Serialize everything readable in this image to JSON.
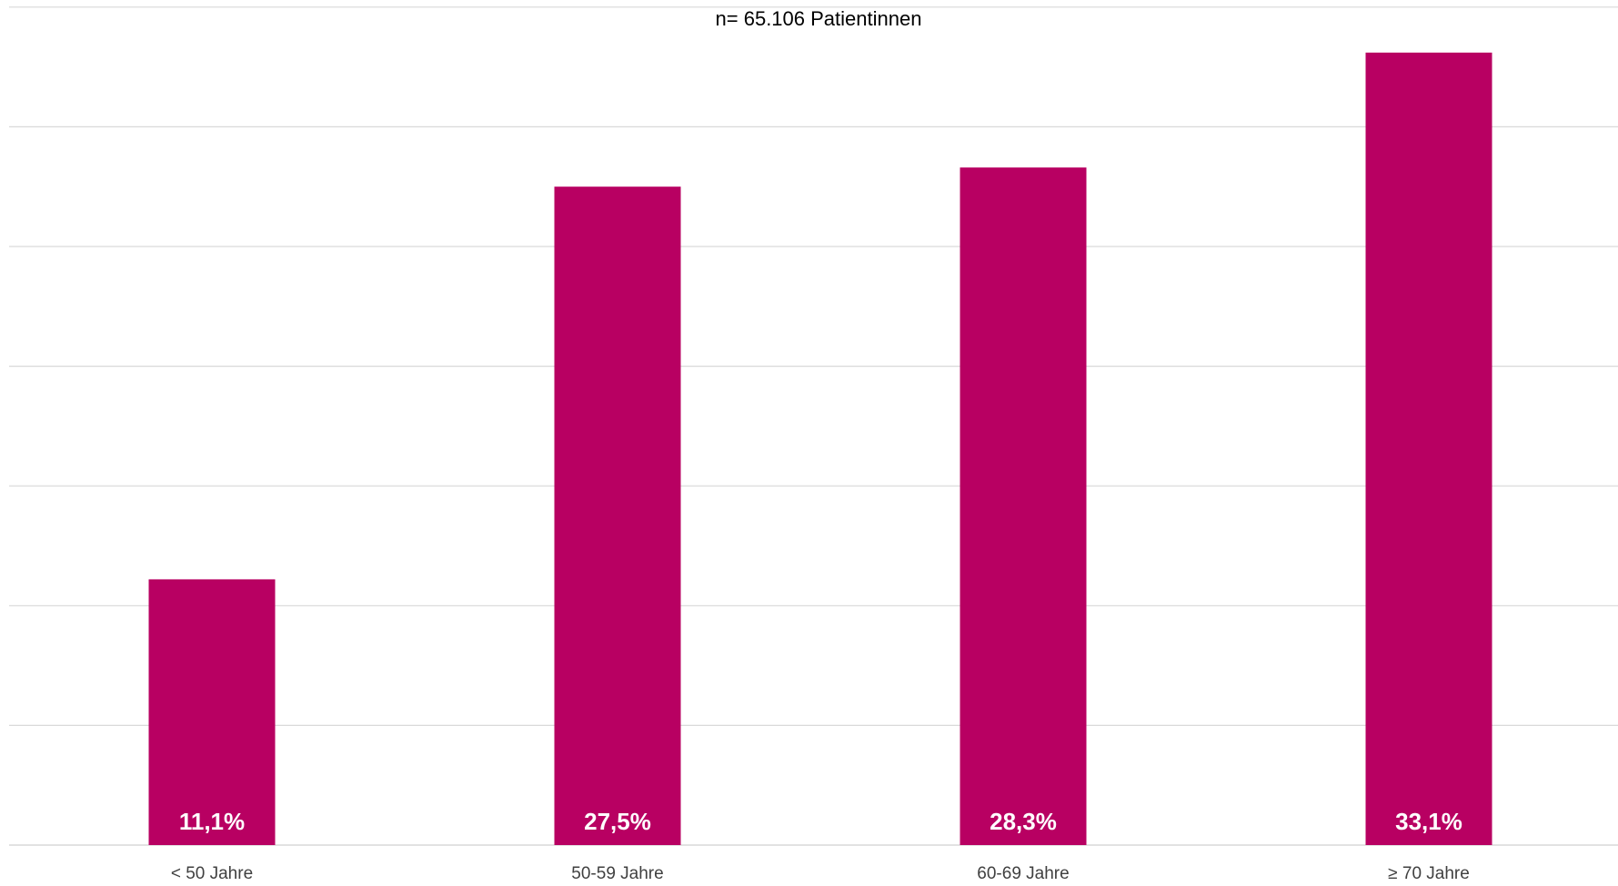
{
  "chart_data": {
    "type": "bar",
    "subtitle": "n= 65.106 Patientinnen",
    "categories": [
      "< 50 Jahre",
      "50-59 Jahre",
      "60-69 Jahre",
      "≥ 70 Jahre"
    ],
    "values": [
      11.1,
      27.5,
      28.3,
      33.1
    ],
    "data_labels": [
      "11,1%",
      "27,5%",
      "28,3%",
      "33,1%"
    ],
    "ylim": [
      0,
      35
    ],
    "y_unit": "%",
    "grid": true,
    "legend": false,
    "colors": {
      "bar": "#B80062",
      "gridline": "#D9D9D9",
      "data_label": "#FFFFFF"
    }
  }
}
